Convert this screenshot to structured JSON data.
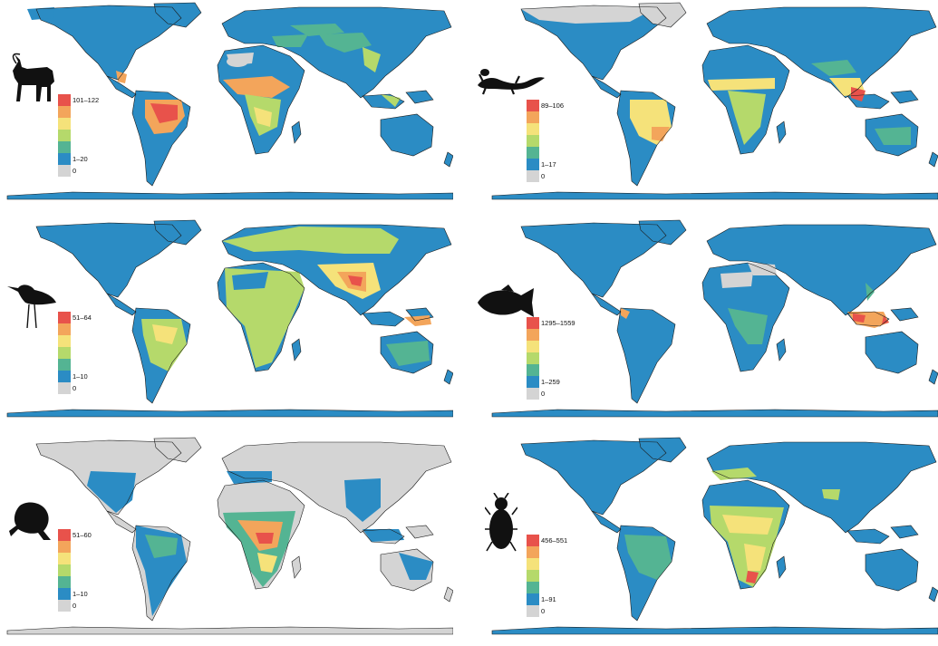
{
  "colors": {
    "ocean": "#ffffff",
    "zero": "#d4d4d4",
    "scale": [
      "#2b8cc4",
      "#54b493",
      "#b5d96b",
      "#f5e27a",
      "#f3a55b",
      "#e8524b"
    ],
    "frame": "#1a1a1a"
  },
  "panels": [
    {
      "id": "mammals",
      "silhouette": "antelope-icon",
      "legend": {
        "max": "101–122",
        "min": "1–20",
        "zero": "0"
      }
    },
    {
      "id": "reptiles",
      "silhouette": "lizard-icon",
      "legend": {
        "max": "89–106",
        "min": "1–17",
        "zero": "0"
      }
    },
    {
      "id": "birds",
      "silhouette": "bird-icon",
      "legend": {
        "max": "51–64",
        "min": "1–10",
        "zero": "0"
      }
    },
    {
      "id": "fishes",
      "silhouette": "fish-icon",
      "legend": {
        "max": "1295–1559",
        "min": "1–259",
        "zero": "0"
      }
    },
    {
      "id": "amphibians",
      "silhouette": "frog-icon",
      "legend": {
        "max": "51–60",
        "min": "1–10",
        "zero": "0"
      }
    },
    {
      "id": "beetles",
      "silhouette": "beetle-icon",
      "legend": {
        "max": "456–551",
        "min": "1–91",
        "zero": "0"
      }
    }
  ]
}
